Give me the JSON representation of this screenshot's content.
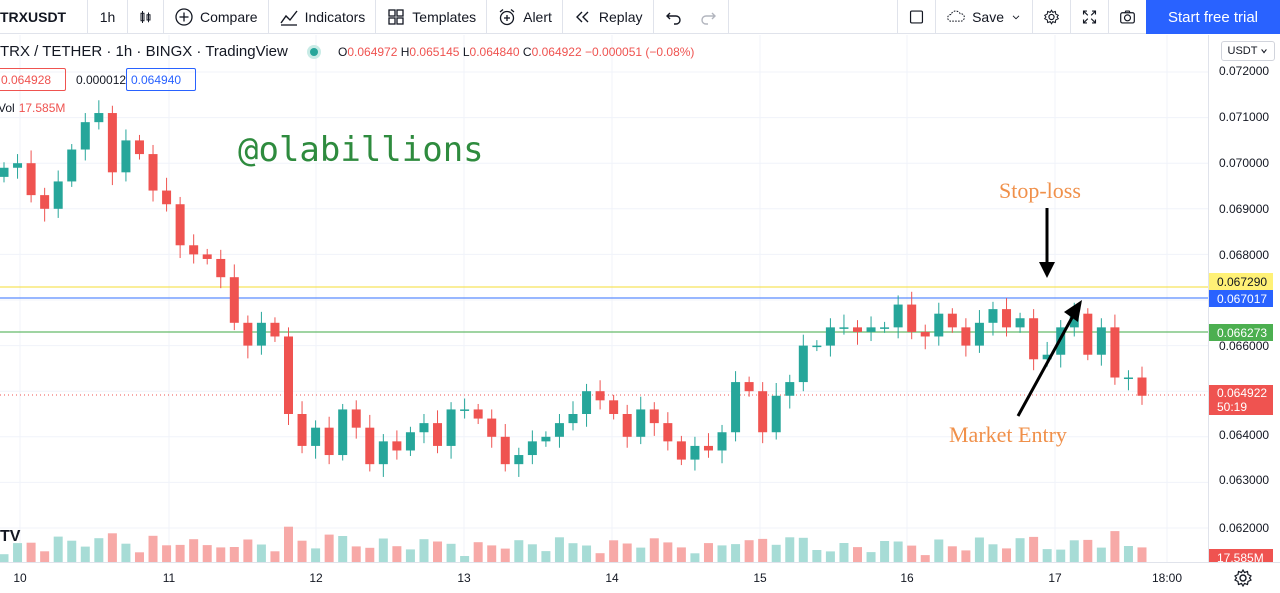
{
  "toolbar": {
    "symbol": "TRXUSDT",
    "interval": "1h",
    "compare_label": "Compare",
    "indicators_label": "Indicators",
    "templates_label": "Templates",
    "alert_label": "Alert",
    "replay_label": "Replay",
    "save_label": "Save",
    "start_trial_label": "Start free trial"
  },
  "legend": {
    "title": "TRX / TETHER · 1h · BINGX · TradingView",
    "o_label": "O",
    "o": "0.064972",
    "h_label": "H",
    "h": "0.065145",
    "l_label": "L",
    "l": "0.064840",
    "c_label": "C",
    "c": "0.064922",
    "change": "−0.000051 (−0.08%)",
    "bid": "0.064928",
    "spread": "0.000012",
    "ask": "0.064940",
    "vol_label": "Vol",
    "vol_value": "17.585M"
  },
  "annotations": {
    "watermark": "@olabillions",
    "stop_loss": "Stop-loss",
    "market_entry": "Market Entry",
    "tv_logo": "TV"
  },
  "price_scale": {
    "currency": "USDT",
    "ticks": [
      "0.072000",
      "0.071000",
      "0.070000",
      "0.069000",
      "0.068000",
      "0.066000",
      "0.064000",
      "0.063000",
      "0.062000"
    ],
    "line_yellow": "0.067290",
    "line_blue": "0.067017",
    "line_green": "0.066273",
    "last_price": "0.064922",
    "countdown": "50:19",
    "volume_label": "17.585M"
  },
  "time_scale": {
    "ticks": [
      "10",
      "11",
      "12",
      "13",
      "14",
      "15",
      "16",
      "17",
      "18:00"
    ]
  },
  "colors": {
    "up": "#26a69a",
    "down": "#ef5350",
    "accent": "#2962ff",
    "annotation": "#f0904a",
    "watermark": "#2e8b3e"
  },
  "chart_data": {
    "type": "candlestick",
    "ylim": [
      0.0615,
      0.0725
    ],
    "horizontal_lines": [
      0.06729,
      0.067017,
      0.066273,
      0.064922
    ],
    "closes": [
      0.0699,
      0.07,
      0.0693,
      0.069,
      0.0696,
      0.0703,
      0.0709,
      0.0711,
      0.0698,
      0.0705,
      0.0702,
      0.0694,
      0.0691,
      0.0682,
      0.068,
      0.0679,
      0.0675,
      0.0665,
      0.066,
      0.0665,
      0.0662,
      0.0645,
      0.0638,
      0.0642,
      0.0636,
      0.0646,
      0.0642,
      0.0634,
      0.0639,
      0.0637,
      0.0641,
      0.0643,
      0.0638,
      0.0646,
      0.0646,
      0.0644,
      0.064,
      0.0634,
      0.0636,
      0.0639,
      0.064,
      0.0643,
      0.0645,
      0.065,
      0.0648,
      0.0645,
      0.064,
      0.0646,
      0.0643,
      0.0639,
      0.0635,
      0.0638,
      0.0637,
      0.0641,
      0.0652,
      0.065,
      0.0641,
      0.0649,
      0.0652,
      0.066,
      0.066,
      0.0664,
      0.0664,
      0.0663,
      0.0664,
      0.0664,
      0.0669,
      0.0663,
      0.0662,
      0.0667,
      0.0664,
      0.066,
      0.0665,
      0.0668,
      0.0664,
      0.0666,
      0.0657,
      0.0658,
      0.0664,
      0.0667,
      0.0658,
      0.0664,
      0.0653,
      0.0653,
      0.0649
    ],
    "volume": "present"
  }
}
